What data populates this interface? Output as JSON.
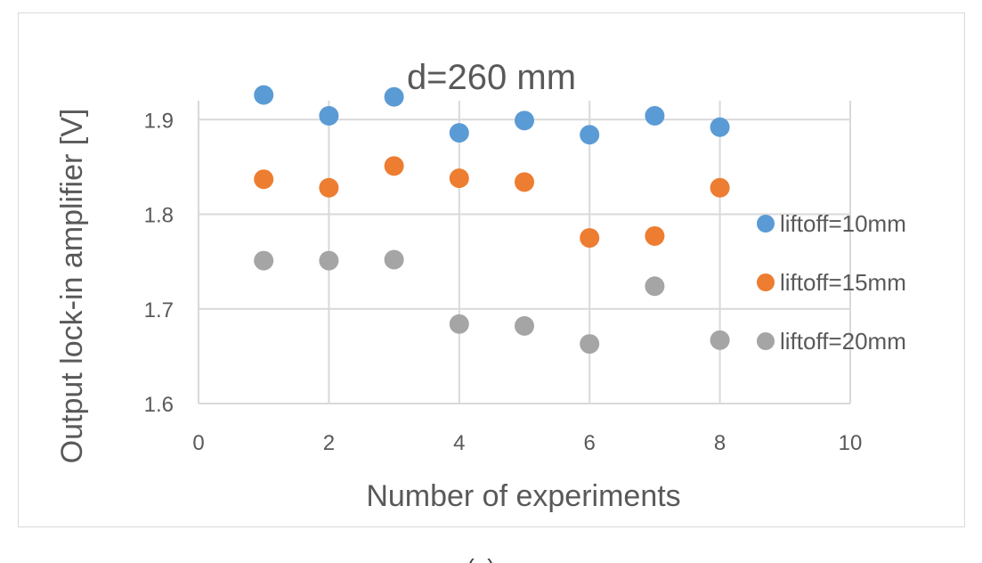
{
  "caption": "(a)",
  "chart_data": {
    "type": "scatter",
    "title": "d=260 mm",
    "xlabel": "Number of experiments",
    "ylabel": "Output lock-in amplifier [V]",
    "xlim": [
      0,
      10
    ],
    "ylim": [
      1.6,
      1.92
    ],
    "x_ticks": [
      0,
      2,
      4,
      6,
      8,
      10
    ],
    "y_ticks": [
      1.6,
      1.7,
      1.8,
      1.9
    ],
    "x_tick_labels": [
      "0",
      "2",
      "4",
      "6",
      "8",
      "10"
    ],
    "y_tick_labels": [
      "1.6",
      "1.7",
      "1.8",
      "1.9"
    ],
    "grid": "both major",
    "legend_position": "right",
    "series": [
      {
        "name": "liftoff=10mm",
        "color": "#5b9bd5",
        "points": [
          {
            "x": 1,
            "y": 1.926
          },
          {
            "x": 2,
            "y": 1.904
          },
          {
            "x": 3,
            "y": 1.924
          },
          {
            "x": 4,
            "y": 1.886
          },
          {
            "x": 5,
            "y": 1.899
          },
          {
            "x": 6,
            "y": 1.884
          },
          {
            "x": 7,
            "y": 1.904
          },
          {
            "x": 8,
            "y": 1.892
          }
        ]
      },
      {
        "name": "liftoff=15mm",
        "color": "#ed7d31",
        "points": [
          {
            "x": 1,
            "y": 1.837
          },
          {
            "x": 2,
            "y": 1.828
          },
          {
            "x": 3,
            "y": 1.851
          },
          {
            "x": 4,
            "y": 1.838
          },
          {
            "x": 5,
            "y": 1.834
          },
          {
            "x": 6,
            "y": 1.775
          },
          {
            "x": 7,
            "y": 1.777
          },
          {
            "x": 8,
            "y": 1.828
          }
        ]
      },
      {
        "name": "liftoff=20mm",
        "color": "#a5a5a5",
        "points": [
          {
            "x": 1,
            "y": 1.751
          },
          {
            "x": 2,
            "y": 1.751
          },
          {
            "x": 3,
            "y": 1.752
          },
          {
            "x": 4,
            "y": 1.684
          },
          {
            "x": 5,
            "y": 1.682
          },
          {
            "x": 6,
            "y": 1.663
          },
          {
            "x": 7,
            "y": 1.724
          },
          {
            "x": 8,
            "y": 1.667
          }
        ]
      }
    ]
  }
}
